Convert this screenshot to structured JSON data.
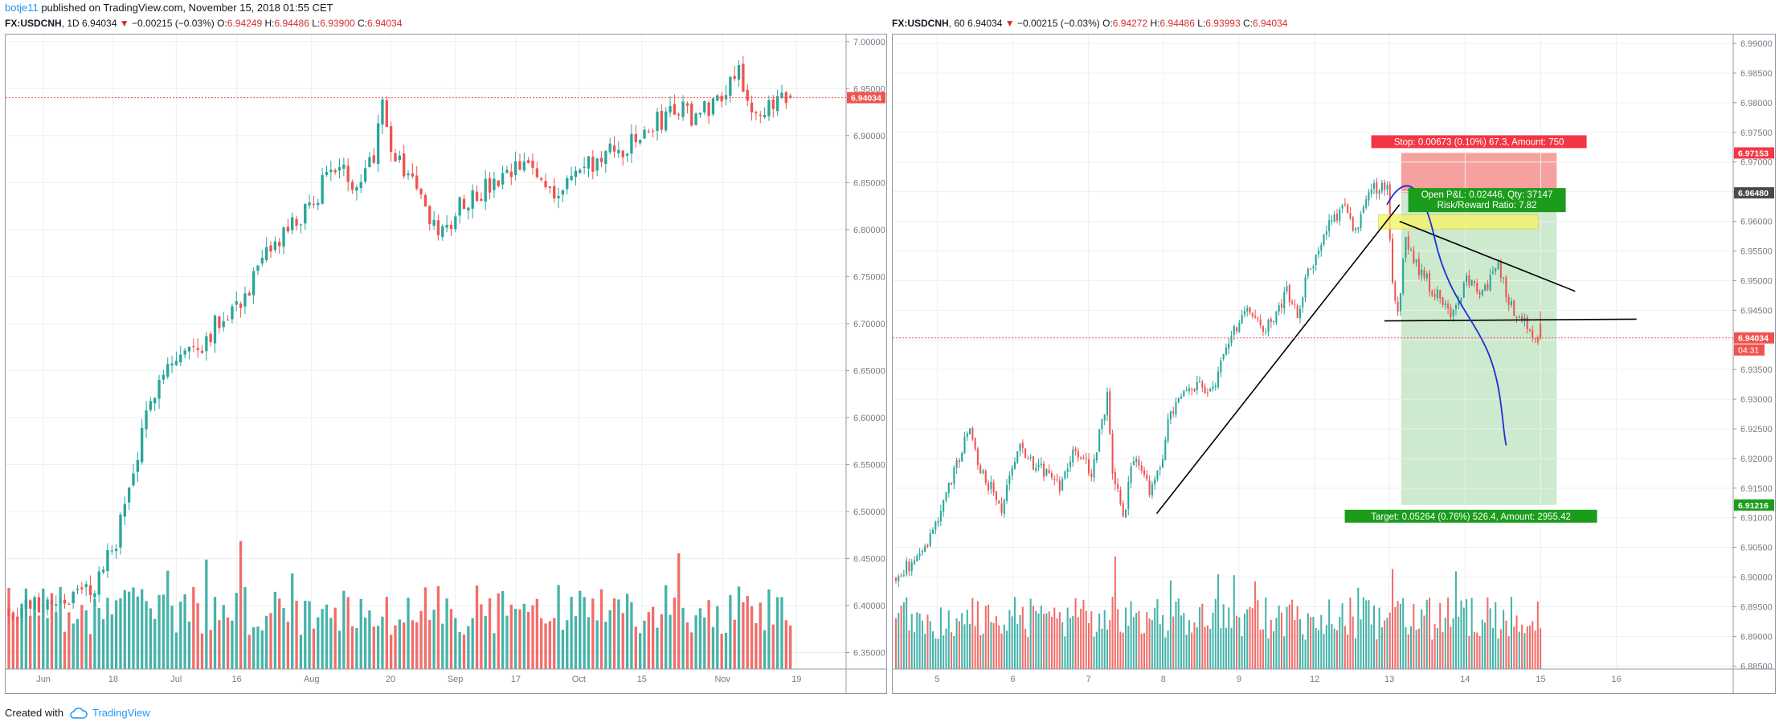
{
  "header": {
    "username": "botje11",
    "published": "published on TradingView.com, November 15, 2018 01:55 CET"
  },
  "footer": {
    "created_with": "Created with",
    "brand": "TradingView"
  },
  "colors": {
    "up": "#26a69a",
    "down": "#ef5350",
    "grid": "#eceff1",
    "axis": "#787b86",
    "price_line": "#ef5350",
    "drawing_blue": "#1e2fd6"
  },
  "chart_data": [
    {
      "type": "candlestick",
      "symbol": "FX:USDCNH",
      "interval": "1D",
      "last": "6.94034",
      "change": "−0.00215 (−0.03%)",
      "ohlc": {
        "O": "6.94249",
        "H": "6.94486",
        "L": "6.93900",
        "C": "6.94034"
      },
      "yticks": [
        "7.00000",
        "6.95000",
        "6.90000",
        "6.85000",
        "6.80000",
        "6.75000",
        "6.70000",
        "6.65000",
        "6.60000",
        "6.55000",
        "6.50000",
        "6.45000",
        "6.40000",
        "6.35000"
      ],
      "ylim": [
        6.3325,
        7.0075
      ],
      "xticks": [
        {
          "label": "Jun",
          "x": 0.045
        },
        {
          "label": "18",
          "x": 0.128
        },
        {
          "label": "Jul",
          "x": 0.203
        },
        {
          "label": "16",
          "x": 0.275
        },
        {
          "label": "Aug",
          "x": 0.364
        },
        {
          "label": "20",
          "x": 0.458
        },
        {
          "label": "Sep",
          "x": 0.535
        },
        {
          "label": "17",
          "x": 0.607
        },
        {
          "label": "Oct",
          "x": 0.682
        },
        {
          "label": "15",
          "x": 0.757
        },
        {
          "label": "Nov",
          "x": 0.853
        },
        {
          "label": "19",
          "x": 0.941
        }
      ],
      "price_label": "6.94034",
      "price_line": 6.94034,
      "keypoints": [
        [
          0,
          6.395
        ],
        [
          10,
          6.405
        ],
        [
          15,
          6.41
        ],
        [
          20,
          6.42
        ],
        [
          25,
          6.47
        ],
        [
          30,
          6.56
        ],
        [
          35,
          6.65
        ],
        [
          40,
          6.665
        ],
        [
          45,
          6.68
        ],
        [
          50,
          6.71
        ],
        [
          55,
          6.73
        ],
        [
          60,
          6.77
        ],
        [
          65,
          6.8
        ],
        [
          70,
          6.82
        ],
        [
          75,
          6.87
        ],
        [
          80,
          6.85
        ],
        [
          85,
          6.88
        ],
        [
          87,
          6.95
        ],
        [
          89,
          6.88
        ],
        [
          95,
          6.85
        ],
        [
          98,
          6.8
        ],
        [
          102,
          6.8
        ],
        [
          105,
          6.83
        ],
        [
          110,
          6.84
        ],
        [
          115,
          6.85
        ],
        [
          120,
          6.87
        ],
        [
          125,
          6.85
        ],
        [
          128,
          6.84
        ],
        [
          132,
          6.86
        ],
        [
          140,
          6.88
        ],
        [
          145,
          6.89
        ],
        [
          150,
          6.91
        ],
        [
          155,
          6.93
        ],
        [
          160,
          6.92
        ],
        [
          165,
          6.94
        ],
        [
          170,
          6.975
        ],
        [
          172,
          6.94
        ],
        [
          173,
          6.92
        ],
        [
          175,
          6.91
        ],
        [
          180,
          6.95
        ],
        [
          182,
          6.94
        ]
      ],
      "count": 183
    },
    {
      "type": "candlestick",
      "symbol": "FX:USDCNH",
      "interval": "60",
      "last": "6.94034",
      "change": "−0.00215 (−0.03%)",
      "ohlc": {
        "O": "6.94272",
        "H": "6.94486",
        "L": "6.93993",
        "C": "6.94034"
      },
      "yticks": [
        "6.99000",
        "6.98500",
        "6.98000",
        "6.97500",
        "6.97000",
        "6.96500",
        "6.96000",
        "6.95500",
        "6.95000",
        "6.94500",
        "6.94000",
        "6.93500",
        "6.93000",
        "6.92500",
        "6.92000",
        "6.91500",
        "6.91000",
        "6.90500",
        "6.90000",
        "6.89500",
        "6.89000",
        "6.88500"
      ],
      "ylim": [
        6.8845,
        6.9915
      ],
      "xticks": [
        {
          "label": "5",
          "x": 0.053
        },
        {
          "label": "6",
          "x": 0.143
        },
        {
          "label": "7",
          "x": 0.233
        },
        {
          "label": "8",
          "x": 0.322
        },
        {
          "label": "9",
          "x": 0.412
        },
        {
          "label": "12",
          "x": 0.502
        },
        {
          "label": "13",
          "x": 0.591
        },
        {
          "label": "14",
          "x": 0.681
        },
        {
          "label": "15",
          "x": 0.771
        },
        {
          "label": "16",
          "x": 0.861
        }
      ],
      "price_label": "6.94034",
      "price_time": "04:31",
      "price_line": 6.94034,
      "stop_price": "6.97153",
      "entry_price": "6.96480",
      "target_price": "6.91216",
      "stop_label": "Stop: 0.00673 (0.10%) 67.3, Amount: 750",
      "pnl_label": "Open P&L: 0.02446, Qty: 37147",
      "rr_label": "Risk/Reward Ratio: 7.82",
      "target_label": "Target: 0.05264 (0.76%) 526.4, Amount: 2955.42",
      "keypoints": [
        [
          0,
          6.9
        ],
        [
          12,
          6.905
        ],
        [
          20,
          6.915
        ],
        [
          28,
          6.925
        ],
        [
          32,
          6.918
        ],
        [
          40,
          6.912
        ],
        [
          46,
          6.922
        ],
        [
          50,
          6.92
        ],
        [
          56,
          6.918
        ],
        [
          62,
          6.915
        ],
        [
          68,
          6.922
        ],
        [
          74,
          6.918
        ],
        [
          80,
          6.93
        ],
        [
          82,
          6.918
        ],
        [
          86,
          6.91
        ],
        [
          90,
          6.92
        ],
        [
          96,
          6.915
        ],
        [
          100,
          6.918
        ],
        [
          104,
          6.928
        ],
        [
          112,
          6.932
        ],
        [
          120,
          6.932
        ],
        [
          126,
          6.94
        ],
        [
          132,
          6.945
        ],
        [
          140,
          6.942
        ],
        [
          148,
          6.948
        ],
        [
          152,
          6.944
        ],
        [
          156,
          6.952
        ],
        [
          160,
          6.955
        ],
        [
          164,
          6.96
        ],
        [
          170,
          6.962
        ],
        [
          174,
          6.958
        ],
        [
          180,
          6.966
        ],
        [
          186,
          6.965
        ],
        [
          188,
          6.95
        ],
        [
          190,
          6.945
        ],
        [
          193,
          6.957
        ],
        [
          198,
          6.952
        ],
        [
          204,
          6.948
        ],
        [
          210,
          6.944
        ],
        [
          216,
          6.95
        ],
        [
          222,
          6.948
        ],
        [
          228,
          6.952
        ],
        [
          234,
          6.944
        ],
        [
          240,
          6.942
        ],
        [
          244,
          6.94
        ]
      ],
      "count": 245
    }
  ]
}
